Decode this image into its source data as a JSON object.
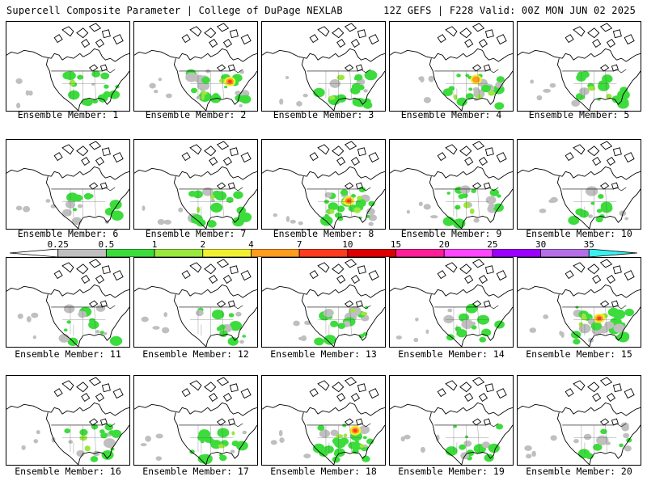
{
  "header": {
    "left_title": "Supercell Composite Parameter | College of DuPage NEXLAB",
    "right_title": "12Z GEFS | F228 Valid: 00Z MON JUN 02 2025"
  },
  "legend": {
    "labels": [
      "0.25",
      "0.5",
      "1",
      "2",
      "4",
      "7",
      "10",
      "15",
      "20",
      "25",
      "30",
      "35"
    ],
    "colors": [
      "#bfbfbf",
      "#3cdc3c",
      "#9be83c",
      "#f0f032",
      "#ff9b1e",
      "#ff3c1e",
      "#dc0000",
      "#ff1e96",
      "#ff46ff",
      "#9b00ff",
      "#b46ee6",
      "#3cf0f0"
    ]
  },
  "panels": [
    {
      "caption": "Ensemble Member: 1",
      "intensity": 2
    },
    {
      "caption": "Ensemble Member: 2",
      "intensity": 4
    },
    {
      "caption": "Ensemble Member: 3",
      "intensity": 2
    },
    {
      "caption": "Ensemble Member: 4",
      "intensity": 3
    },
    {
      "caption": "Ensemble Member: 5",
      "intensity": 2
    },
    {
      "caption": "Ensemble Member: 6",
      "intensity": 1
    },
    {
      "caption": "Ensemble Member: 7",
      "intensity": 2
    },
    {
      "caption": "Ensemble Member: 8",
      "intensity": 4
    },
    {
      "caption": "Ensemble Member: 9",
      "intensity": 2
    },
    {
      "caption": "Ensemble Member: 10",
      "intensity": 1
    },
    {
      "caption": "Ensemble Member: 11",
      "intensity": 1
    },
    {
      "caption": "Ensemble Member: 12",
      "intensity": 1
    },
    {
      "caption": "Ensemble Member: 13",
      "intensity": 2
    },
    {
      "caption": "Ensemble Member: 14",
      "intensity": 1
    },
    {
      "caption": "Ensemble Member: 15",
      "intensity": 4
    },
    {
      "caption": "Ensemble Member: 16",
      "intensity": 2
    },
    {
      "caption": "Ensemble Member: 17",
      "intensity": 2
    },
    {
      "caption": "Ensemble Member: 18",
      "intensity": 4
    },
    {
      "caption": "Ensemble Member: 19",
      "intensity": 1
    },
    {
      "caption": "Ensemble Member: 20",
      "intensity": 1
    }
  ]
}
